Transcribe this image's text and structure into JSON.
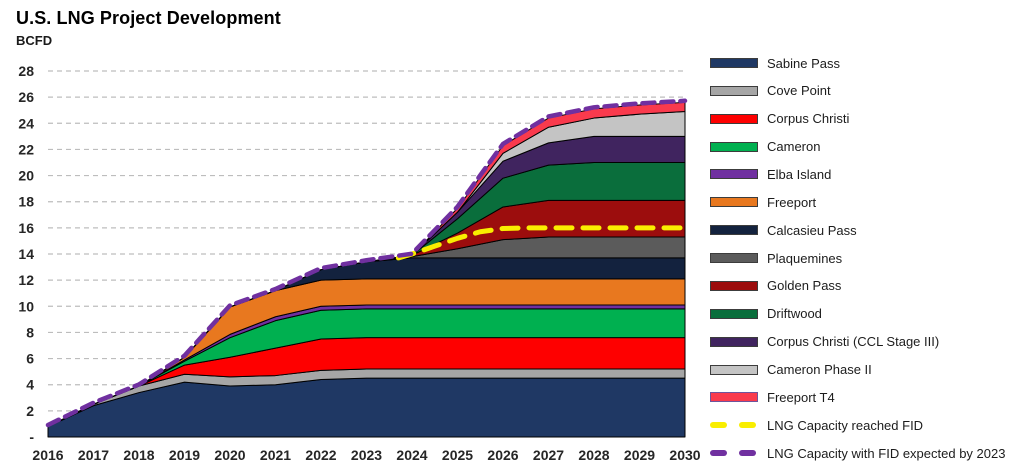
{
  "header": {
    "title": "U.S. LNG Project Development"
  },
  "chart_data": {
    "type": "area",
    "stacked": true,
    "title": "U.S. LNG Project Development",
    "ylabel": "BCFD",
    "xlabel": "",
    "ylim": [
      0,
      28
    ],
    "y_tick_step": 2,
    "y_zero_label": "-",
    "grid": "horizontal dashed",
    "legend_position": "right",
    "x": [
      2016,
      2017,
      2018,
      2019,
      2020,
      2021,
      2022,
      2023,
      2024,
      2025,
      2026,
      2027,
      2028,
      2029,
      2030
    ],
    "series": [
      {
        "name": "Sabine Pass",
        "color": "#1f3864",
        "values": [
          0.8,
          2.4,
          3.4,
          4.2,
          3.9,
          4.0,
          4.4,
          4.5,
          4.5,
          4.5,
          4.5,
          4.5,
          4.5,
          4.5,
          4.5
        ]
      },
      {
        "name": "Cove Point",
        "color": "#a6a6a6",
        "values": [
          0,
          0.1,
          0.5,
          0.6,
          0.7,
          0.7,
          0.7,
          0.7,
          0.7,
          0.7,
          0.7,
          0.7,
          0.7,
          0.7,
          0.7
        ]
      },
      {
        "name": "Corpus Christi",
        "color": "#fe0000",
        "values": [
          0,
          0,
          0,
          0.7,
          1.5,
          2.1,
          2.4,
          2.4,
          2.4,
          2.4,
          2.4,
          2.4,
          2.4,
          2.4,
          2.4
        ]
      },
      {
        "name": "Cameron",
        "color": "#00b050",
        "values": [
          0,
          0,
          0,
          0.3,
          1.5,
          2.1,
          2.2,
          2.2,
          2.2,
          2.2,
          2.2,
          2.2,
          2.2,
          2.2,
          2.2
        ]
      },
      {
        "name": "Elba Island",
        "color": "#7030a0",
        "values": [
          0,
          0,
          0,
          0.1,
          0.25,
          0.3,
          0.3,
          0.3,
          0.3,
          0.3,
          0.3,
          0.3,
          0.3,
          0.3,
          0.3
        ]
      },
      {
        "name": "Freeport",
        "color": "#e8781f",
        "values": [
          0,
          0,
          0,
          0.2,
          2.1,
          2.0,
          2.0,
          2.0,
          2.0,
          2.0,
          2.0,
          2.0,
          2.0,
          2.0,
          2.0
        ]
      },
      {
        "name": "Calcasieu Pass",
        "color": "#13223e",
        "values": [
          0,
          0,
          0,
          0,
          0,
          0,
          0.8,
          1.3,
          1.6,
          1.6,
          1.6,
          1.6,
          1.6,
          1.6,
          1.6
        ]
      },
      {
        "name": "Plaquemines",
        "color": "#5b5b5b",
        "values": [
          0,
          0,
          0,
          0,
          0,
          0,
          0,
          0,
          0.1,
          0.7,
          1.4,
          1.6,
          1.6,
          1.6,
          1.6
        ]
      },
      {
        "name": "Golden Pass",
        "color": "#9c0d0d",
        "values": [
          0,
          0,
          0,
          0,
          0,
          0,
          0,
          0,
          0.1,
          1.2,
          2.5,
          2.8,
          2.8,
          2.8,
          2.8
        ]
      },
      {
        "name": "Driftwood",
        "color": "#0a6e3c",
        "values": [
          0,
          0,
          0,
          0,
          0,
          0,
          0,
          0,
          0,
          1.1,
          2.2,
          2.7,
          2.9,
          2.9,
          2.9
        ]
      },
      {
        "name": "Corpus Christi (CCL Stage III)",
        "color": "#40245f",
        "values": [
          0,
          0,
          0,
          0,
          0,
          0,
          0,
          0,
          0,
          0.5,
          1.3,
          1.7,
          2.0,
          2.0,
          2.0
        ]
      },
      {
        "name": "Cameron Phase II",
        "color": "#c4c4c4",
        "values": [
          0,
          0,
          0,
          0,
          0,
          0,
          0,
          0,
          0,
          0,
          0.6,
          1.2,
          1.4,
          1.7,
          1.9
        ]
      },
      {
        "name": "Freeport T4",
        "color": "#f93a4d",
        "values": [
          0,
          0,
          0,
          0,
          0,
          0,
          0,
          0,
          0,
          0.3,
          0.6,
          0.7,
          0.7,
          0.7,
          0.7
        ]
      }
    ],
    "overlay_lines": [
      {
        "name": "LNG Capacity reached FID",
        "color": "#f9ee00",
        "style": "dashed",
        "dash": [
          16,
          11
        ],
        "width": 5,
        "points": [
          [
            2023.7,
            13.7
          ],
          [
            2024,
            14.0
          ],
          [
            2024.5,
            14.6
          ],
          [
            2025,
            15.2
          ],
          [
            2025.5,
            15.7
          ],
          [
            2026,
            15.95
          ],
          [
            2026.5,
            16.0
          ],
          [
            2030,
            16.0
          ]
        ]
      },
      {
        "name": "LNG Capacity with FID expected by 2023",
        "color": "#7030a0",
        "style": "dashed",
        "dash": [
          12,
          7
        ],
        "width": 4.5,
        "follows_total": true,
        "offset": 0.12
      }
    ]
  },
  "legend": {
    "items": [
      {
        "label": "Sabine Pass",
        "color": "#1f3864",
        "swatch": "box"
      },
      {
        "label": "Cove Point",
        "color": "#a6a6a6",
        "swatch": "box"
      },
      {
        "label": "Corpus Christi",
        "color": "#fe0000",
        "swatch": "box"
      },
      {
        "label": "Cameron",
        "color": "#00b050",
        "swatch": "box"
      },
      {
        "label": "Elba Island",
        "color": "#7030a0",
        "swatch": "box"
      },
      {
        "label": "Freeport",
        "color": "#e8781f",
        "swatch": "box"
      },
      {
        "label": "Calcasieu Pass",
        "color": "#13223e",
        "swatch": "box"
      },
      {
        "label": "Plaquemines",
        "color": "#5b5b5b",
        "swatch": "box"
      },
      {
        "label": "Golden Pass",
        "color": "#9c0d0d",
        "swatch": "box"
      },
      {
        "label": "Driftwood",
        "color": "#0a6e3c",
        "swatch": "box"
      },
      {
        "label": "Corpus Christi (CCL Stage III)",
        "color": "#40245f",
        "swatch": "box"
      },
      {
        "label": "Cameron Phase II",
        "color": "#c4c4c4",
        "swatch": "box"
      },
      {
        "label": "Freeport T4",
        "color": "#f93a4d",
        "swatch": "box",
        "border": "#6e549c"
      },
      {
        "label": "LNG Capacity reached FID",
        "color": "#f9ee00",
        "swatch": "dashes"
      },
      {
        "label": "LNG Capacity with FID expected by 2023",
        "color": "#7030a0",
        "swatch": "dashes"
      }
    ]
  }
}
